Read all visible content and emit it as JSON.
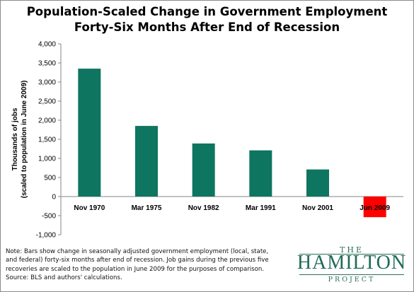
{
  "title_line1": "Population-Scaled  Change in Government Employment",
  "title_line2": "Forty-Six Months After End of Recession",
  "chart_data": {
    "type": "bar",
    "title": "Population-Scaled  Change in Government Employment Forty-Six Months After End of Recession",
    "ylabel_line1": "Thousands of jobs",
    "ylabel_line2": "(scaled to population in June 2009)",
    "categories": [
      "Nov 1970",
      "Mar 1975",
      "Nov 1982",
      "Mar 1991",
      "Nov 2001",
      "Jun 2009"
    ],
    "values": [
      3350,
      1850,
      1390,
      1210,
      710,
      -540
    ],
    "ylim": [
      -1000,
      4000
    ],
    "yticks": [
      -1000,
      -500,
      0,
      500,
      1000,
      1500,
      2000,
      2500,
      3000,
      3500,
      4000
    ],
    "ytick_labels": [
      "-1,000",
      "-500",
      "0",
      "500",
      "1,000",
      "1,500",
      "2,000",
      "2,500",
      "3,000",
      "3,500",
      "4,000"
    ],
    "grid": false,
    "colors": {
      "default": "#0e7561",
      "highlight": "#ff0000"
    },
    "highlight_index": 5
  },
  "note_lines": [
    "Note: Bars show change in seasonally adjusted government employment (local, state,",
    "and federal) forty-six months after end of recession. Job gains during the previous five",
    "recoveries are scaled to the population in June 2009 for the purposes of comparison.",
    "Source: BLS and authors' calculations."
  ],
  "logo": {
    "the": "THE",
    "name": "HAMILTON",
    "project": "PROJECT"
  }
}
